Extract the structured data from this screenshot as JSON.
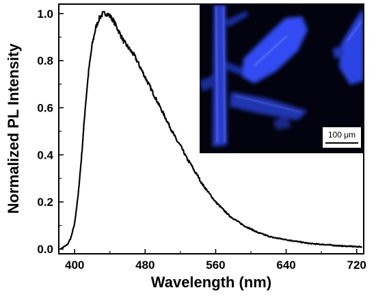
{
  "chart_data": {
    "type": "line",
    "xlabel": "Wavelength (nm)",
    "ylabel": "Normalized PL Intensity",
    "xlim": [
      382,
      728
    ],
    "ylim": [
      -0.02,
      1.04
    ],
    "x_ticks": [
      400,
      480,
      560,
      640,
      720
    ],
    "y_ticks": [
      0.0,
      0.2,
      0.4,
      0.6,
      0.8,
      1.0
    ],
    "x_tick_labels": [
      "400",
      "480",
      "560",
      "640",
      "720"
    ],
    "y_tick_labels": [
      "0.0",
      "0.2",
      "0.4",
      "0.6",
      "0.8",
      "1.0"
    ],
    "grid": false,
    "series_color": "#000000",
    "series": [
      {
        "x": [
          384,
          388,
          392,
          396,
          400,
          404,
          408,
          412,
          416,
          420,
          424,
          428,
          432,
          436,
          440,
          444,
          448,
          452,
          456,
          460,
          464,
          468,
          472,
          476,
          480,
          484,
          488,
          492,
          496,
          500,
          504,
          508,
          512,
          516,
          520,
          524,
          528,
          532,
          536,
          540,
          544,
          548,
          552,
          556,
          560,
          568,
          576,
          584,
          592,
          600,
          608,
          616,
          624,
          632,
          640,
          648,
          656,
          664,
          672,
          680,
          688,
          696,
          704,
          712,
          720,
          726
        ],
        "y": [
          0.0,
          0.01,
          0.02,
          0.05,
          0.11,
          0.23,
          0.4,
          0.6,
          0.76,
          0.87,
          0.94,
          0.98,
          1.0,
          1.0,
          0.99,
          0.97,
          0.94,
          0.91,
          0.88,
          0.86,
          0.84,
          0.82,
          0.79,
          0.76,
          0.73,
          0.7,
          0.67,
          0.64,
          0.61,
          0.58,
          0.55,
          0.52,
          0.49,
          0.46,
          0.44,
          0.41,
          0.38,
          0.36,
          0.33,
          0.31,
          0.28,
          0.26,
          0.24,
          0.22,
          0.2,
          0.17,
          0.14,
          0.12,
          0.1,
          0.085,
          0.07,
          0.06,
          0.05,
          0.045,
          0.04,
          0.035,
          0.03,
          0.025,
          0.022,
          0.02,
          0.018,
          0.015,
          0.013,
          0.012,
          0.01,
          0.01
        ]
      }
    ],
    "inset": {
      "scale_bar_label": "100 μm",
      "background": "#02030f",
      "glow_color": "#2f4bff"
    }
  }
}
